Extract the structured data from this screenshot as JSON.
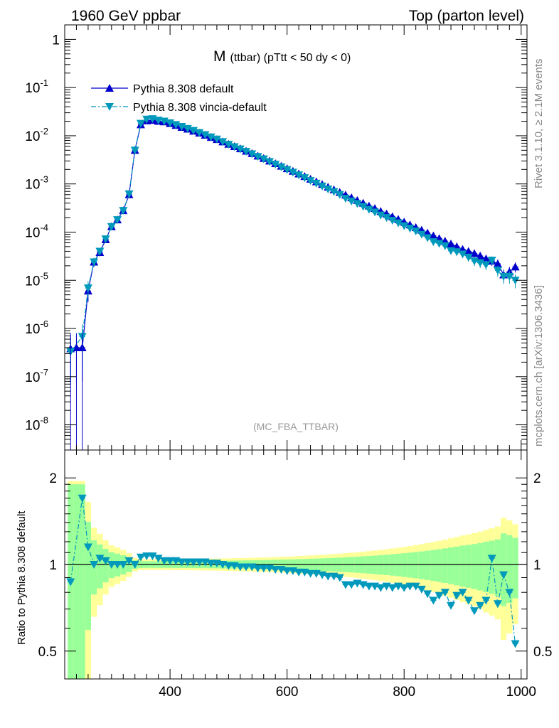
{
  "header": {
    "left": "1960 GeV ppbar",
    "right": "Top (parton level)"
  },
  "title": {
    "main": "M",
    "detail": "(ttbar) (pTtt < 50 dy < 0)"
  },
  "side_labels": {
    "rivet": "Rivet 3.1.10, ≥ 2.1M events",
    "mcplots": "mcplots.cern.ch [arXiv:1306.3436]"
  },
  "analysis_tag": "(MC_FBA_TTBAR)",
  "ratio_ylabel": "Ratio to Pythia 8.308 default",
  "colors": {
    "default": "#0000cc",
    "vincia": "#0099bb",
    "band_inner": "#99ff99",
    "band_outer": "#ffff99"
  },
  "legend": [
    {
      "label": "Pythia 8.308 default",
      "style": "solid",
      "marker": "triangle-up"
    },
    {
      "label": "Pythia 8.308 vincia-default",
      "style": "dash-dot",
      "marker": "triangle-down"
    }
  ],
  "chart_data": [
    {
      "type": "line",
      "yscale": "log",
      "xlim": [
        220,
        1010
      ],
      "ylim": [
        3e-09,
        2.0
      ],
      "xticks": [
        400,
        600,
        800,
        1000
      ],
      "yticks": [
        {
          "v": 1e-08,
          "label": "10",
          "exp": "-8"
        },
        {
          "v": 1e-07,
          "label": "10",
          "exp": "-7"
        },
        {
          "v": 1e-06,
          "label": "10",
          "exp": "-6"
        },
        {
          "v": 1e-05,
          "label": "10",
          "exp": "-5"
        },
        {
          "v": 0.0001,
          "label": "10",
          "exp": "-4"
        },
        {
          "v": 0.001,
          "label": "10",
          "exp": "-3"
        },
        {
          "v": 0.01,
          "label": "10",
          "exp": "-2"
        },
        {
          "v": 0.1,
          "label": "10",
          "exp": "-1"
        },
        {
          "v": 1,
          "label": "1",
          "exp": ""
        }
      ],
      "x": [
        230,
        240,
        250,
        260,
        270,
        280,
        290,
        300,
        310,
        320,
        330,
        340,
        350,
        360,
        370,
        380,
        390,
        400,
        410,
        420,
        430,
        440,
        450,
        460,
        470,
        480,
        490,
        500,
        510,
        520,
        530,
        540,
        550,
        560,
        570,
        580,
        590,
        600,
        610,
        620,
        630,
        640,
        650,
        660,
        670,
        680,
        690,
        700,
        710,
        720,
        730,
        740,
        750,
        760,
        770,
        780,
        790,
        800,
        810,
        820,
        830,
        840,
        850,
        860,
        870,
        880,
        890,
        900,
        910,
        920,
        930,
        940,
        950,
        960,
        970,
        980,
        990
      ],
      "series": [
        {
          "name": "Pythia 8.308 default",
          "values": [
            3.8e-07,
            4e-07,
            4e-07,
            6e-06,
            2.4e-05,
            3.8e-05,
            7e-05,
            0.00013,
            0.00018,
            0.00028,
            0.0006,
            0.005,
            0.017,
            0.0205,
            0.021,
            0.02,
            0.0195,
            0.018,
            0.0165,
            0.015,
            0.0138,
            0.0125,
            0.0114,
            0.0103,
            0.0093,
            0.0084,
            0.0075,
            0.0067,
            0.006,
            0.0054,
            0.0048,
            0.0043,
            0.0038,
            0.0034,
            0.003,
            0.00265,
            0.00235,
            0.00208,
            0.00184,
            0.00162,
            0.00143,
            0.00126,
            0.00111,
            0.00098,
            0.00086,
            0.00076,
            0.00067,
            0.00059,
            0.00052,
            0.000455,
            0.0004,
            0.00035,
            0.00031,
            0.00027,
            0.00024,
            0.00021,
            0.000185,
            0.000162,
            0.000142,
            0.000125,
            0.00011,
            9.6e-05,
            8.4e-05,
            7.4e-05,
            6.5e-05,
            5.7e-05,
            5e-05,
            4.4e-05,
            4e-05,
            3.6e-05,
            3.2e-05,
            2.8e-05,
            2.5e-05,
            2.2e-05,
            1.3e-05,
            1.5e-05,
            1.9e-05
          ]
        },
        {
          "name": "Pythia 8.308 vincia-default",
          "values": [
            3.3e-07,
            null,
            6.8e-07,
            6.9e-06,
            2.4e-05,
            4e-05,
            7.2e-05,
            0.00013,
            0.00018,
            0.00028,
            0.00062,
            0.005,
            0.018,
            0.022,
            0.0225,
            0.021,
            0.02,
            0.0185,
            0.017,
            0.0155,
            0.0141,
            0.0128,
            0.0116,
            0.0105,
            0.0094,
            0.0085,
            0.0075,
            0.0066,
            0.0059,
            0.0053,
            0.0047,
            0.0042,
            0.0037,
            0.0033,
            0.0029,
            0.00255,
            0.00225,
            0.00198,
            0.00174,
            0.00153,
            0.00134,
            0.00117,
            0.00103,
            0.0009,
            0.00078,
            0.00069,
            0.0006,
            0.0005,
            0.00044,
            0.00039,
            0.00034,
            0.000295,
            0.00026,
            0.000225,
            0.0002,
            0.000175,
            0.000155,
            0.000135,
            0.00012,
            0.000105,
            9e-05,
            7.6e-05,
            6.3e-05,
            5.8e-05,
            5.2e-05,
            4.1e-05,
            3.9e-05,
            3.5e-05,
            3e-05,
            2.5e-05,
            2.3e-05,
            2.1e-05,
            2.6e-05,
            1.6e-05,
            1.2e-05,
            1.2e-05,
            1e-05
          ]
        }
      ]
    },
    {
      "type": "line",
      "yscale": "log",
      "ylabel": "Ratio to Pythia 8.308 default",
      "xlim": [
        220,
        1010
      ],
      "ylim": [
        0.4,
        2.5
      ],
      "xticks": [
        400,
        600,
        800,
        1000
      ],
      "yticks": [
        0.5,
        1,
        2
      ],
      "x": [
        230,
        240,
        250,
        260,
        270,
        280,
        290,
        300,
        310,
        320,
        330,
        340,
        350,
        360,
        370,
        380,
        390,
        400,
        410,
        420,
        430,
        440,
        450,
        460,
        470,
        480,
        490,
        500,
        510,
        520,
        530,
        540,
        550,
        560,
        570,
        580,
        590,
        600,
        610,
        620,
        630,
        640,
        650,
        660,
        670,
        680,
        690,
        700,
        710,
        720,
        730,
        740,
        750,
        760,
        770,
        780,
        790,
        800,
        810,
        820,
        830,
        840,
        850,
        860,
        870,
        880,
        890,
        900,
        910,
        920,
        930,
        940,
        950,
        960,
        970,
        980,
        990
      ],
      "series": [
        {
          "name": "Pythia 8.308 vincia-default",
          "values": [
            0.87,
            null,
            1.7,
            1.15,
            1.0,
            1.05,
            1.03,
            1.0,
            1.0,
            1.0,
            1.03,
            1.0,
            1.06,
            1.07,
            1.07,
            1.05,
            1.03,
            1.03,
            1.03,
            1.02,
            1.02,
            1.02,
            1.02,
            1.02,
            1.01,
            1.01,
            1.0,
            0.99,
            0.99,
            0.98,
            0.98,
            0.98,
            0.97,
            0.97,
            0.97,
            0.96,
            0.96,
            0.95,
            0.95,
            0.94,
            0.94,
            0.93,
            0.93,
            0.92,
            0.91,
            0.91,
            0.9,
            0.85,
            0.85,
            0.86,
            0.85,
            0.84,
            0.84,
            0.83,
            0.84,
            0.83,
            0.84,
            0.83,
            0.84,
            0.84,
            0.82,
            0.79,
            0.75,
            0.78,
            0.8,
            0.72,
            0.78,
            0.8,
            0.75,
            0.69,
            0.72,
            0.75,
            1.05,
            0.73,
            0.92,
            0.8,
            0.53
          ]
        }
      ]
    }
  ]
}
